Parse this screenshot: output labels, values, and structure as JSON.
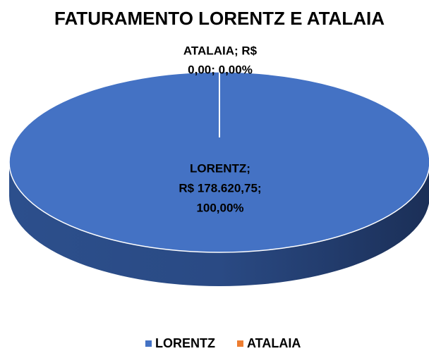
{
  "chart_data": {
    "type": "pie3d",
    "title": "FATURAMENTO  LORENTZ E ATALAIA",
    "categories": [
      "LORENTZ",
      "ATALAIA"
    ],
    "values": [
      178620.75,
      0
    ],
    "value_labels": [
      [
        "LORENTZ;",
        "R$ 178.620,75;",
        "100,00%"
      ],
      [
        "ATALAIA; R$",
        "0,00; 0,00%"
      ]
    ],
    "colors": [
      "#4472c4",
      "#ed7d31"
    ],
    "legend": "bottom"
  }
}
